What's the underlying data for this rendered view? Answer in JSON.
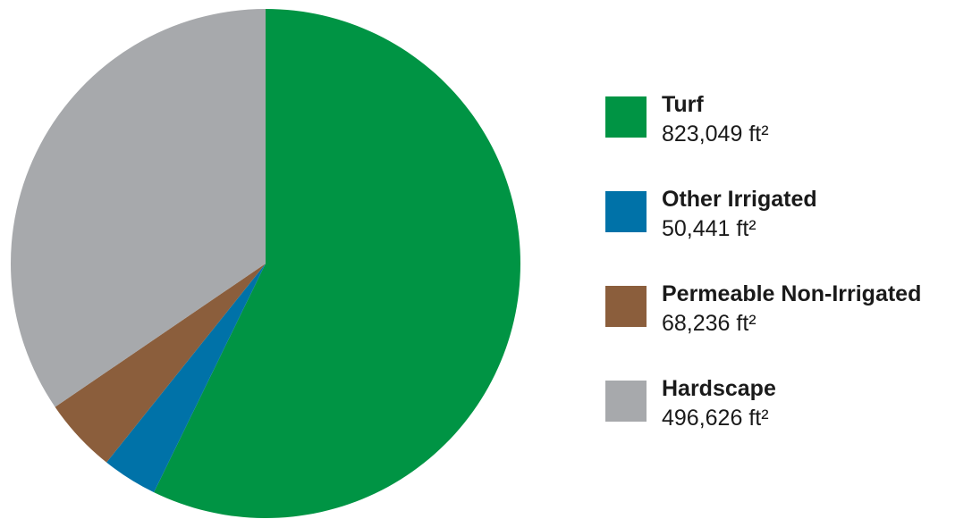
{
  "chart_data": {
    "type": "pie",
    "unit": "ft²",
    "slices": [
      {
        "label": "Turf",
        "value": 823049,
        "value_text": "823,049 ft²",
        "color": "#009444"
      },
      {
        "label": "Other Irrigated",
        "value": 50441,
        "value_text": "50,441 ft²",
        "color": "#0072a8"
      },
      {
        "label": "Permeable Non-Irrigated",
        "value": 68236,
        "value_text": "68,236 ft²",
        "color": "#8b5e3c"
      },
      {
        "label": "Hardscape",
        "value": 496626,
        "value_text": "496,626 ft²",
        "color": "#a7a9ac"
      }
    ],
    "legend_position": "right"
  }
}
